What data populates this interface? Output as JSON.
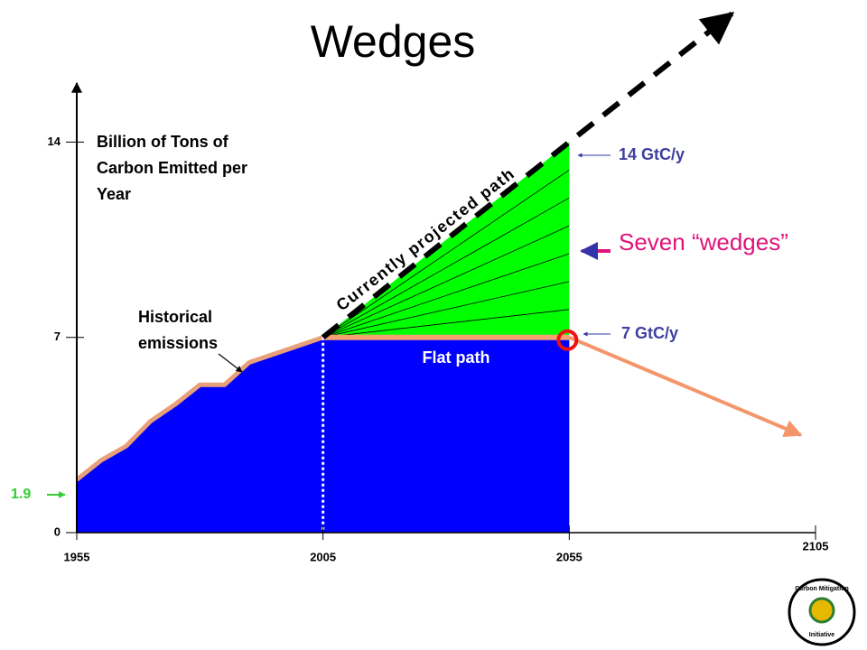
{
  "chart_data": {
    "type": "wedges",
    "title": "Wedges",
    "y_label": [
      "Billion of Tons of",
      "Carbon Emitted per",
      "Year"
    ],
    "xlim": [
      1955,
      2105
    ],
    "xticks": [
      1955,
      2005,
      2055,
      2105
    ],
    "ylim": [
      0,
      16
    ],
    "yticks": [
      0,
      7,
      14
    ],
    "historical": {
      "name": [
        "Historical",
        "emissions"
      ],
      "color": "#0000ff",
      "line_color": "#e8a07a",
      "x": [
        1955,
        1960,
        1965,
        1970,
        1975,
        1980,
        1985,
        1990,
        1995,
        2000,
        2005
      ],
      "values": [
        1.9,
        2.6,
        3.1,
        4.0,
        4.6,
        5.3,
        5.3,
        6.1,
        6.4,
        6.7,
        7.0
      ]
    },
    "projected": {
      "name": "Currently projected path",
      "color": "#000000",
      "x": [
        2005,
        2055,
        2088
      ],
      "values": [
        7,
        14,
        18.6
      ]
    },
    "flat": {
      "name": "Flat path",
      "color": "#f4a070",
      "x": [
        2005,
        2055
      ],
      "values": [
        7,
        7
      ]
    },
    "decline": {
      "color": "#f4956a",
      "x": [
        2055,
        2102
      ],
      "values": [
        7,
        3.5
      ]
    },
    "wedge_color": "#00ff00",
    "wedge_edges": [
      8,
      9,
      10,
      11,
      12,
      13
    ],
    "labels": {
      "top": "14 GtC/y",
      "bottom": "7 GtC/y",
      "wedges": "Seven “wedges”",
      "start": "1.9"
    },
    "logo": [
      "Carbon Mitigation",
      "Initiative"
    ]
  }
}
